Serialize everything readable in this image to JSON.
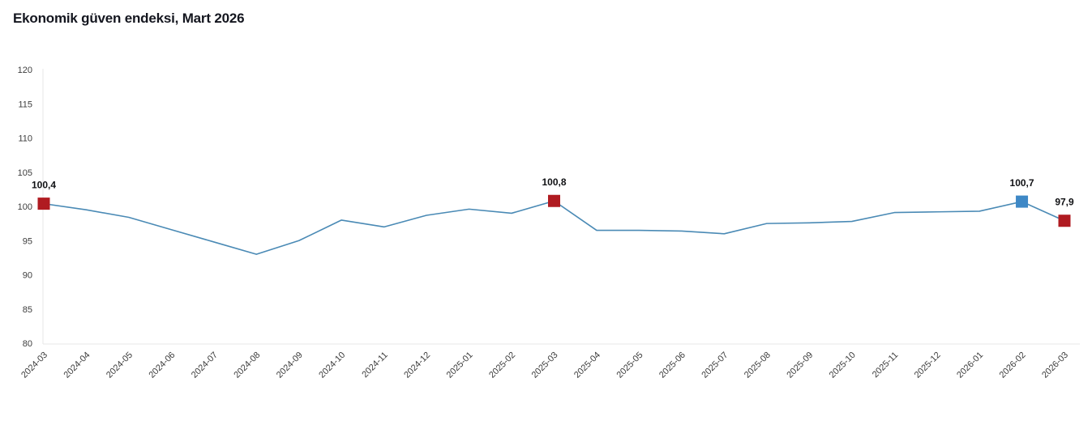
{
  "header": {
    "title": "Ekonomik güven endeksi, Mart 2026"
  },
  "chart_data": {
    "type": "line",
    "title": "Ekonomik güven endeksi, Mart 2026",
    "x": [
      "2024-03",
      "2024-04",
      "2024-05",
      "2024-06",
      "2024-07",
      "2024-08",
      "2024-09",
      "2024-10",
      "2024-11",
      "2024-12",
      "2025-01",
      "2025-02",
      "2025-03",
      "2025-04",
      "2025-05",
      "2025-06",
      "2025-07",
      "2025-08",
      "2025-09",
      "2025-10",
      "2025-11",
      "2025-12",
      "2026-01",
      "2026-02",
      "2026-03"
    ],
    "series": [
      {
        "name": "Ekonomik güven endeksi",
        "values": [
          100.4,
          99.5,
          98.4,
          96.6,
          94.8,
          93.0,
          95.0,
          98.0,
          97.0,
          98.7,
          99.6,
          99.0,
          100.8,
          96.5,
          96.5,
          96.4,
          96.0,
          97.5,
          97.6,
          97.8,
          99.1,
          99.2,
          99.3,
          100.7,
          97.9
        ]
      }
    ],
    "ylim": [
      80,
      120
    ],
    "ytick_step": 5,
    "grid": "off",
    "legend": "none",
    "xtick_rotation": -45,
    "annotations": [
      {
        "x": "2024-03",
        "label": "100,4",
        "marker": "square",
        "color": "#b01b21"
      },
      {
        "x": "2025-03",
        "label": "100,8",
        "marker": "square",
        "color": "#b01b21"
      },
      {
        "x": "2026-02",
        "label": "100,7",
        "marker": "square",
        "color": "#3e88c6"
      },
      {
        "x": "2026-03",
        "label": "97,9",
        "marker": "square",
        "color": "#b01b21"
      }
    ],
    "colors": {
      "line": "#4a8ab5",
      "marker_red": "#b01b21",
      "marker_blue": "#3e88c6",
      "axis": "#e7e7e7",
      "tick_text": "#3c3c3c",
      "title_text": "#14161f"
    }
  }
}
